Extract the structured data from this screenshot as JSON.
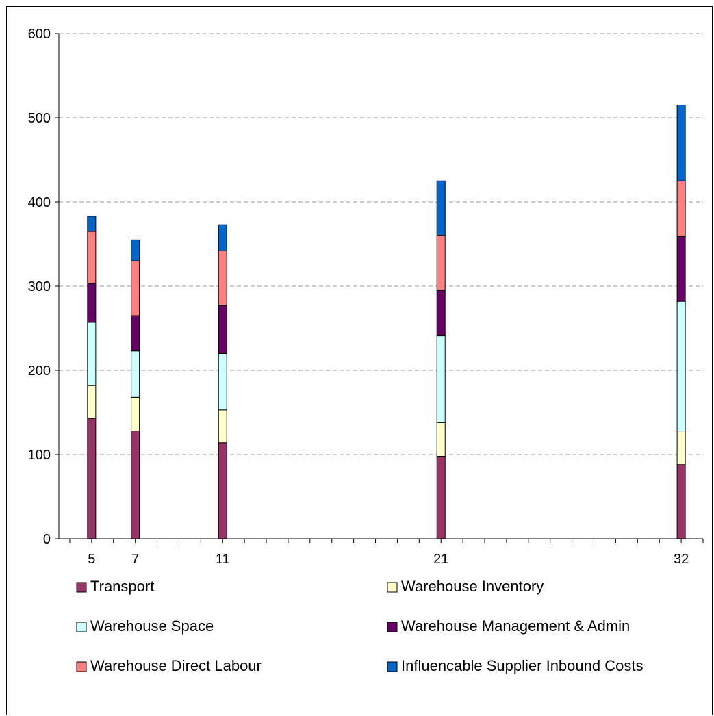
{
  "chart_data": {
    "type": "bar",
    "stacked": true,
    "title": "",
    "xlabel": "",
    "ylabel": "",
    "x_scale": "linear",
    "xlim": [
      3.5,
      33
    ],
    "ylim": [
      0,
      600
    ],
    "yticks": [
      0,
      100,
      200,
      300,
      400,
      500,
      600
    ],
    "grid": "horizontal dashed",
    "legend_position": "bottom",
    "categories": [
      "5",
      "7",
      "11",
      "21",
      "32"
    ],
    "x": [
      5,
      7,
      11,
      21,
      32
    ],
    "series": [
      {
        "name": "Transport",
        "color": "#993366",
        "values": [
          143,
          128,
          114,
          98,
          88
        ]
      },
      {
        "name": "Warehouse Inventory",
        "color": "#FFFFCC",
        "values": [
          39,
          40,
          39,
          40,
          40
        ]
      },
      {
        "name": "Warehouse Space",
        "color": "#CCFFFF",
        "values": [
          75,
          55,
          67,
          103,
          154
        ]
      },
      {
        "name": "Warehouse Management & Admin",
        "color": "#660066",
        "values": [
          46,
          42,
          57,
          54,
          77
        ]
      },
      {
        "name": "Warehouse Direct Labour",
        "color": "#FF8080",
        "values": [
          62,
          65,
          65,
          65,
          66
        ]
      },
      {
        "name": "Influencable Supplier Inbound Costs",
        "color": "#0066CC",
        "values": [
          18,
          25,
          31,
          65,
          90
        ]
      }
    ]
  }
}
